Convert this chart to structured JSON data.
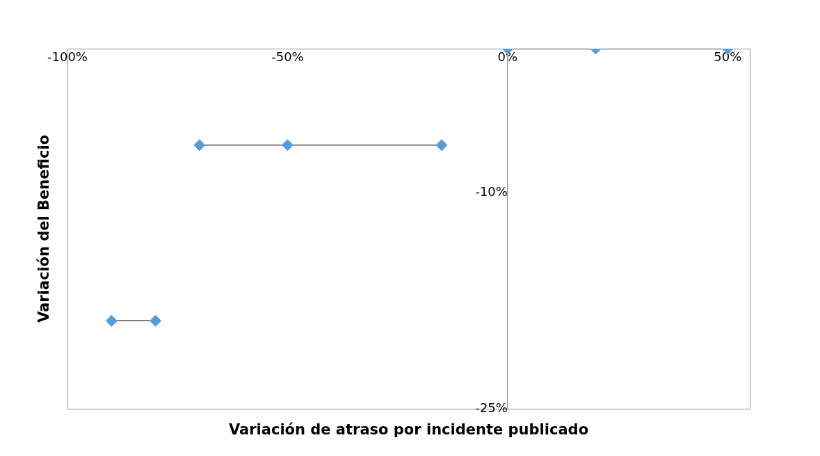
{
  "chart_data": {
    "type": "line",
    "xlabel": "Variación de atraso por incidente publicado",
    "ylabel": "Variación del Beneficio",
    "xlim": [
      -100,
      55
    ],
    "xticks": [
      {
        "value": -100,
        "label": "-100%"
      },
      {
        "value": -50,
        "label": "-50%"
      },
      {
        "value": 0,
        "label": "0%"
      },
      {
        "value": 50,
        "label": "50%"
      }
    ],
    "ylim": [
      -25,
      0
    ],
    "yticks": [
      {
        "value": -25,
        "label": "-25%"
      },
      {
        "value": -10,
        "label": "-10%"
      }
    ],
    "grid": false,
    "legend": false,
    "marker": "diamond",
    "line_style": "solid",
    "series": [
      {
        "color": "#5b9bd5",
        "x": [
          0,
          20,
          50
        ],
        "values": [
          0,
          0,
          0
        ]
      },
      {
        "color": "#5b9bd5",
        "x": [
          -70,
          -50,
          -15
        ],
        "values": [
          -6.7,
          -6.7,
          -6.7
        ]
      },
      {
        "color": "#5b9bd5",
        "x": [
          -90,
          -80
        ],
        "values": [
          -18.9,
          -18.9
        ]
      }
    ]
  }
}
